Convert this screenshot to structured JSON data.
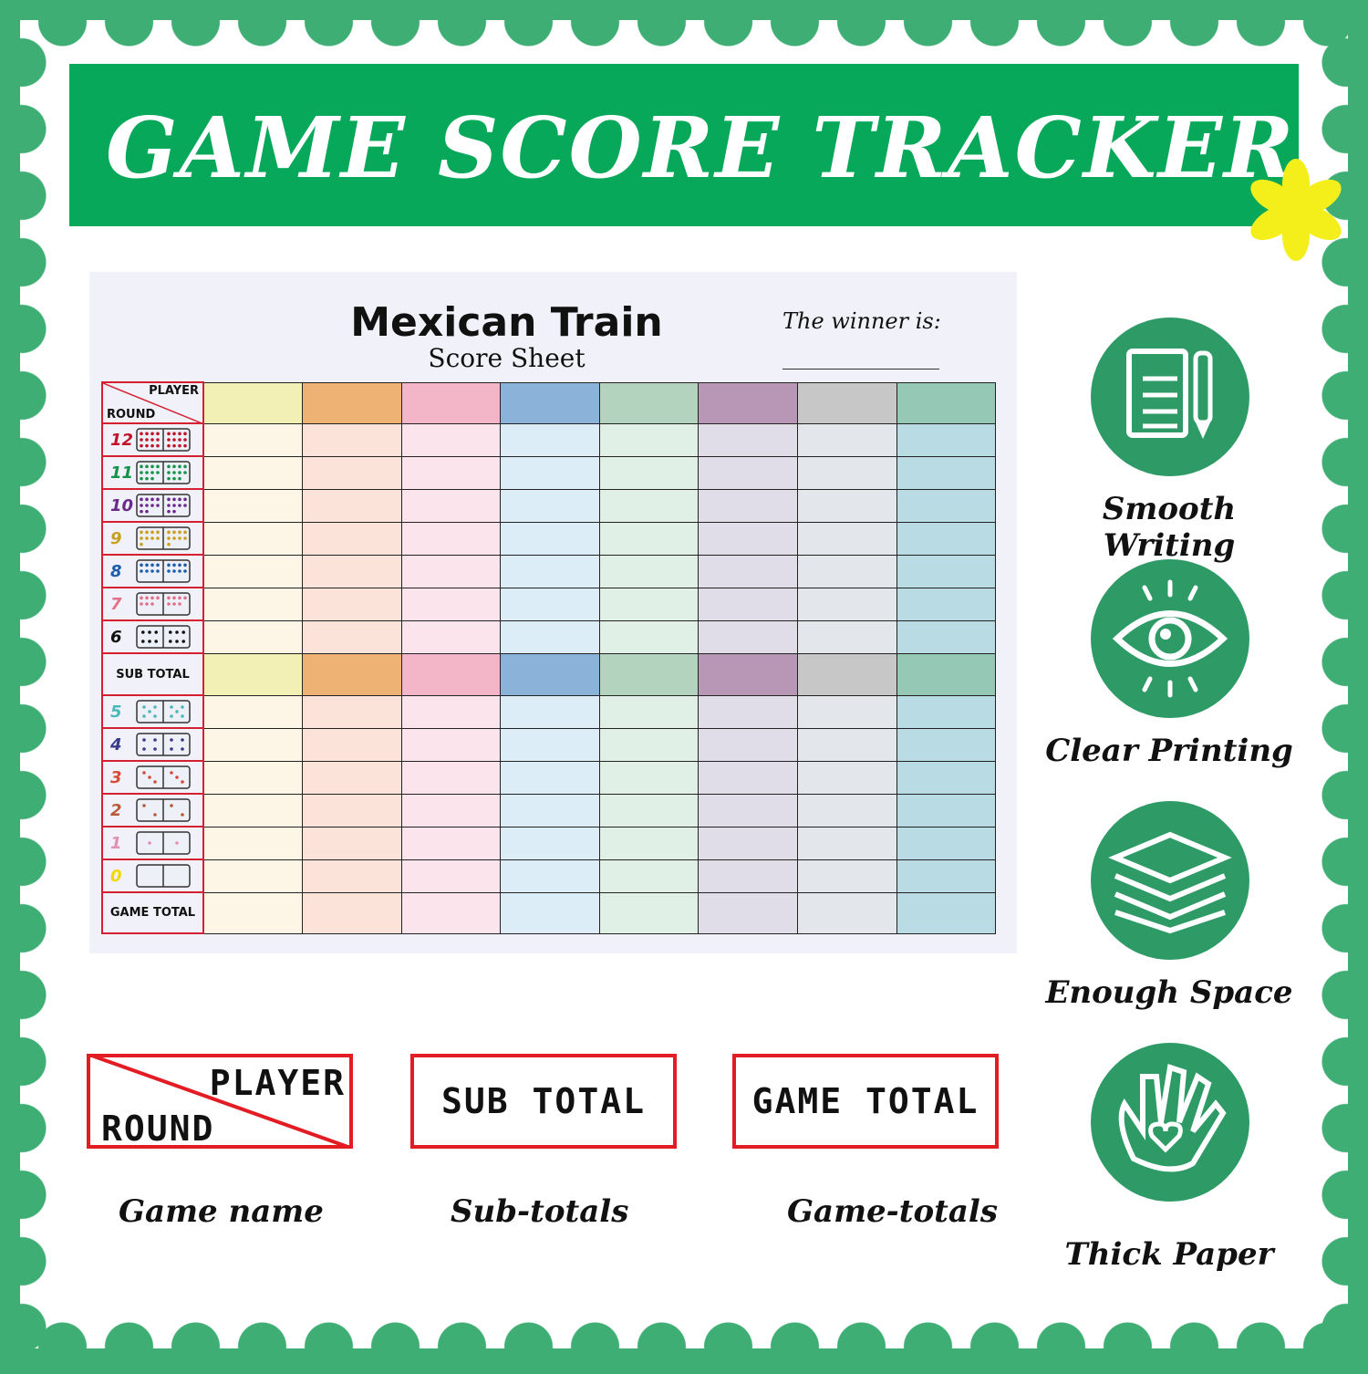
{
  "banner": {
    "title": "GAME SCORE TRACKER",
    "accent": "#08a85a",
    "flower_color": "#f4ef1a"
  },
  "sheet": {
    "title": "Mexican Train",
    "subtitle": "Score Sheet",
    "winner_label": "The winner is:",
    "corner_player": "PLAYER",
    "corner_round": "ROUND",
    "rounds_top": [
      {
        "n": "12",
        "color": "#c0142a"
      },
      {
        "n": "11",
        "color": "#18924a"
      },
      {
        "n": "10",
        "color": "#6a2a8a"
      },
      {
        "n": "9",
        "color": "#c8a020"
      },
      {
        "n": "8",
        "color": "#1e5ea8"
      },
      {
        "n": "7",
        "color": "#e2708a"
      },
      {
        "n": "6",
        "color": "#111111"
      }
    ],
    "sub_total": "SUB TOTAL",
    "rounds_bottom": [
      {
        "n": "5",
        "color": "#4bb8b8"
      },
      {
        "n": "4",
        "color": "#3a3a8a"
      },
      {
        "n": "3",
        "color": "#d84a3a"
      },
      {
        "n": "2",
        "color": "#b85a3a"
      },
      {
        "n": "1",
        "color": "#e090b0"
      },
      {
        "n": "0",
        "color": "#f0d800"
      }
    ],
    "game_total": "GAME TOTAL",
    "player_header_colors": [
      "#f3f0b5",
      "#eeb274",
      "#f2b6c8",
      "#8bb3da",
      "#b3d3bf",
      "#b896b6",
      "#c7c7c7",
      "#96c8b6"
    ],
    "player_body_colors": [
      "#fdf6e6",
      "#fce3da",
      "#fbe4ec",
      "#dcedf8",
      "#e0f0e6",
      "#e0dde9",
      "#e3e7ec",
      "#b9dbe3"
    ]
  },
  "features": [
    {
      "label": "Smooth Writing",
      "icon": "document-pen-icon"
    },
    {
      "label": "Clear Printing",
      "icon": "eye-icon"
    },
    {
      "label": "Enough Space",
      "icon": "paper-stack-icon"
    },
    {
      "label": "Thick Paper",
      "icon": "hand-heart-icon"
    }
  ],
  "examples": [
    {
      "box_player": "PLAYER",
      "box_round": "ROUND",
      "caption": "Game name"
    },
    {
      "box": "SUB TOTAL",
      "caption": "Sub-totals"
    },
    {
      "box": "GAME TOTAL",
      "caption": "Game-totals"
    }
  ]
}
